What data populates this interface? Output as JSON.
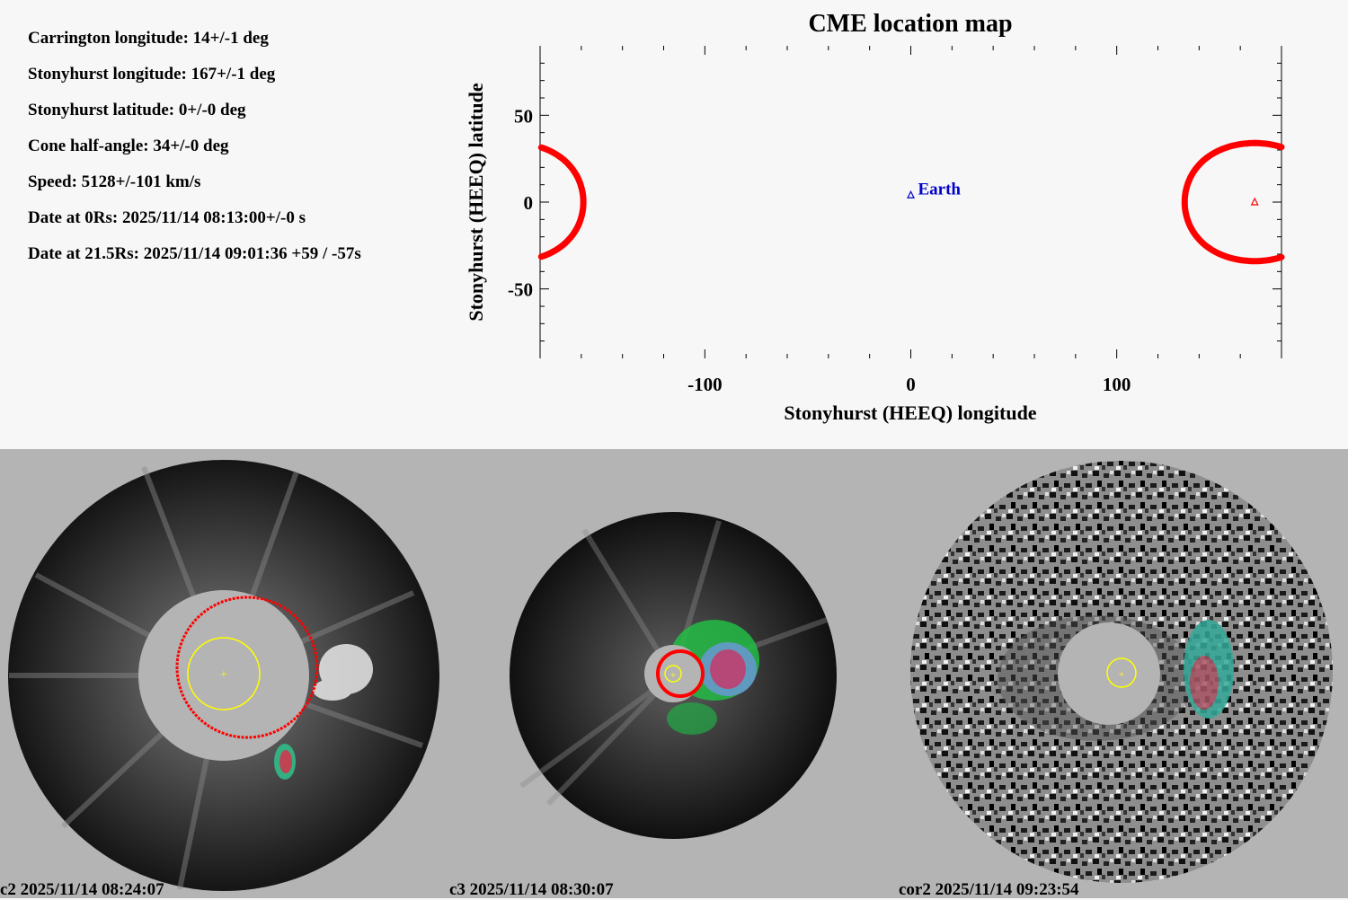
{
  "info": {
    "carrington_longitude": "Carrington longitude: 14+/-1 deg",
    "stonyhurst_longitude": "Stonyhurst longitude: 167+/-1 deg",
    "stonyhurst_latitude": "Stonyhurst latitude: 0+/-0 deg",
    "cone_half_angle": "Cone half-angle: 34+/-0 deg",
    "speed": "Speed: 5128+/-101 km/s",
    "date_0rs": "Date at 0Rs: 2025/11/14 08:13:00+/-0 s",
    "date_21rs": "Date at 21.5Rs: 2025/11/14 09:01:36 +59 / -57s"
  },
  "chart_data": {
    "type": "scatter",
    "title": "CME location map",
    "xlabel": "Stonyhurst (HEEQ) longitude",
    "ylabel": "Stonyhurst (HEEQ) latitude",
    "xlim": [
      -180,
      180
    ],
    "ylim": [
      -90,
      90
    ],
    "xticks": [
      -100,
      0,
      100
    ],
    "yticks": [
      -50,
      0,
      50
    ],
    "xtick_labels": [
      "-100",
      "0",
      "100"
    ],
    "ytick_labels": [
      "-50",
      "0",
      "50"
    ],
    "earth": {
      "lon": 0,
      "lat": 4,
      "label": "Earth",
      "color": "#0000cc"
    },
    "cme": {
      "lon": 167,
      "lat": 0,
      "half_angle": 34,
      "color": "#ff0000"
    }
  },
  "panels": [
    {
      "label": "c2 2025/11/14 08:24:07"
    },
    {
      "label": "c3 2025/11/14 08:30:07"
    },
    {
      "label": "cor2 2025/11/14 09:23:54"
    }
  ],
  "colors": {
    "cme": "#ff0000",
    "sun_circle": "#ffff00",
    "occulter": "#b4b4b4"
  }
}
